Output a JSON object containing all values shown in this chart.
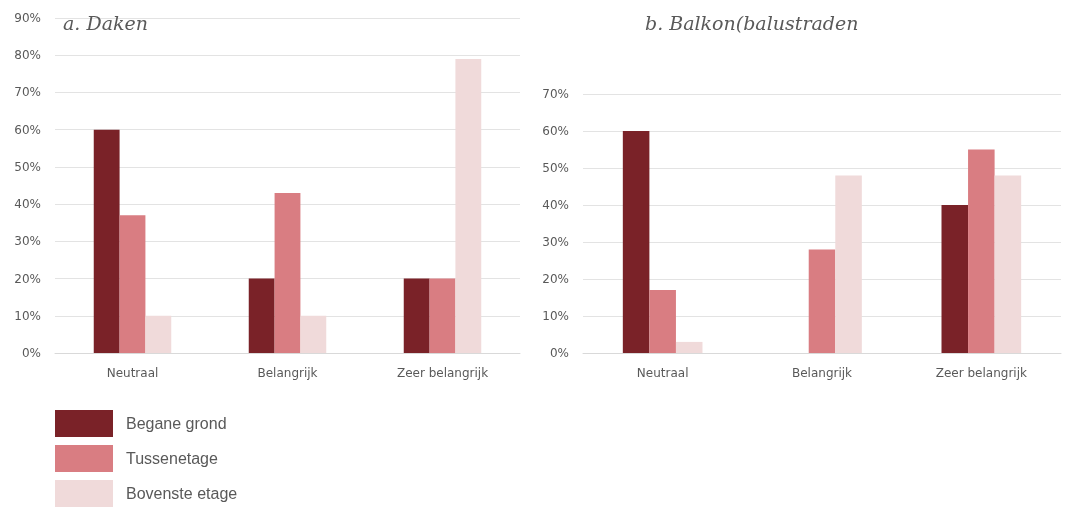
{
  "chart_data": [
    {
      "type": "bar",
      "title": "a. Daken",
      "categories": [
        "Neutraal",
        "Belangrijk",
        "Zeer belangrijk"
      ],
      "series": [
        {
          "name": "Begane grond",
          "color": "#7a2228",
          "values": [
            60,
            20,
            20
          ]
        },
        {
          "name": "Tussenetage",
          "color": "#d97d82",
          "values": [
            37,
            43,
            20
          ]
        },
        {
          "name": "Bovenste etage",
          "color": "#f0dada",
          "values": [
            10,
            10,
            79
          ]
        }
      ],
      "ylim": [
        0,
        90
      ],
      "yticks": [
        {
          "value": 0,
          "label": "0%"
        },
        {
          "value": 10,
          "label": "10%"
        },
        {
          "value": 20,
          "label": "20%"
        },
        {
          "value": 30,
          "label": "30%"
        },
        {
          "value": 40,
          "label": "40%"
        },
        {
          "value": 50,
          "label": "50%"
        },
        {
          "value": 60,
          "label": "60%"
        },
        {
          "value": 70,
          "label": "70%"
        },
        {
          "value": 80,
          "label": "80%"
        },
        {
          "value": 90,
          "label": "90%"
        }
      ],
      "grid": "y",
      "legend": "bottom left"
    },
    {
      "type": "bar",
      "title": "b. Balkon(balustraden",
      "categories": [
        "Neutraal",
        "Belangrijk",
        "Zeer belangrijk"
      ],
      "series": [
        {
          "color": "#7a2228",
          "values": [
            60,
            0,
            40
          ]
        },
        {
          "color": "#d97d82",
          "values": [
            17,
            28,
            55
          ]
        },
        {
          "color": "#f0dada",
          "values": [
            3,
            48,
            48
          ]
        }
      ],
      "ylim": [
        0,
        70
      ],
      "yticks": [
        {
          "value": 0,
          "label": "0%"
        },
        {
          "value": 10,
          "label": "10%"
        },
        {
          "value": 20,
          "label": "20%"
        },
        {
          "value": 30,
          "label": "30%"
        },
        {
          "value": 40,
          "label": "40%"
        },
        {
          "value": 50,
          "label": "50%"
        },
        {
          "value": 60,
          "label": "60%"
        },
        {
          "value": 70,
          "label": "70%"
        }
      ],
      "grid": "y",
      "legend": false
    }
  ]
}
